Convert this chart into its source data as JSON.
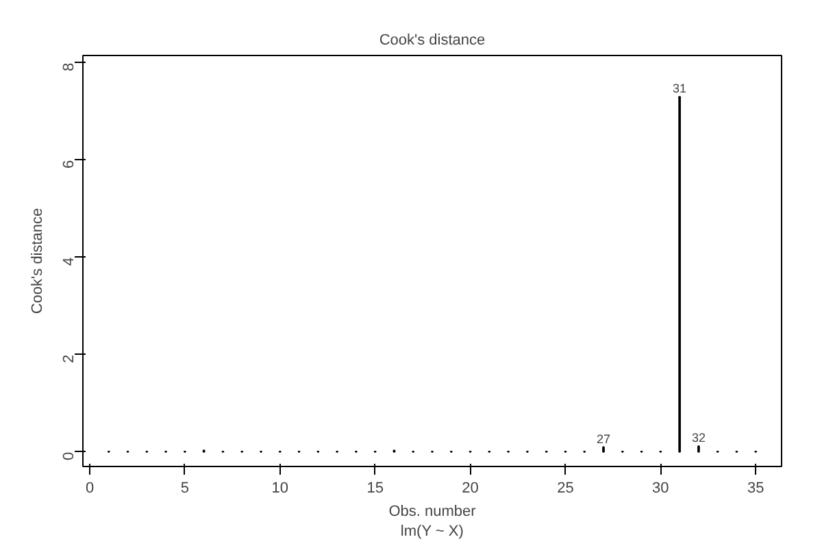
{
  "chart_data": {
    "type": "bar",
    "title": "Cook's distance",
    "xlabel": "Obs. number\nlm(Y ~ X)",
    "ylabel": "Cook's distance",
    "x": [
      1,
      2,
      3,
      4,
      5,
      6,
      7,
      8,
      9,
      10,
      11,
      12,
      13,
      14,
      15,
      16,
      17,
      18,
      19,
      20,
      21,
      22,
      23,
      24,
      25,
      26,
      27,
      28,
      29,
      30,
      31,
      32,
      33,
      34,
      35
    ],
    "values": [
      0.01,
      0.01,
      0.01,
      0.01,
      0.01,
      0.03,
      0.01,
      0.01,
      0.01,
      0.01,
      0.01,
      0.01,
      0.01,
      0.01,
      0.01,
      0.03,
      0.01,
      0.01,
      0.01,
      0.01,
      0.01,
      0.01,
      0.01,
      0.01,
      0.01,
      0.01,
      0.1,
      0.01,
      0.01,
      0.01,
      7.3,
      0.12,
      0.01,
      0.01,
      0.01
    ],
    "color": "#000000",
    "xlim": [
      -0.36,
      36.36
    ],
    "ylim": [
      -0.3,
      8.15
    ],
    "xticks": [
      0,
      5,
      10,
      15,
      20,
      25,
      30,
      35
    ],
    "yticks": [
      0,
      2,
      4,
      6,
      8
    ],
    "annotations": [
      {
        "text": "27",
        "x": 27,
        "y": 0.1
      },
      {
        "text": "31",
        "x": 31,
        "y": 7.3
      },
      {
        "text": "32",
        "x": 32,
        "y": 0.12
      }
    ]
  }
}
